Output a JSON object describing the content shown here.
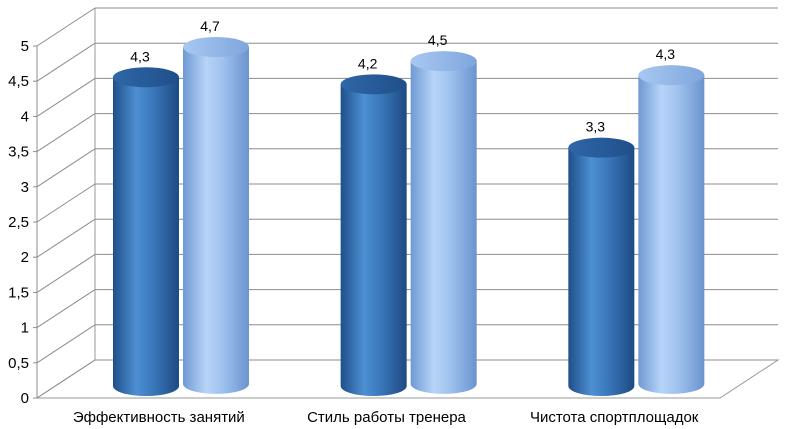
{
  "chart_data": {
    "type": "bar",
    "style": "3d-cylinder",
    "categories": [
      "Эффективность занятий",
      "Стиль работы тренера",
      "Чистота спортплощадок"
    ],
    "series": [
      {
        "values": [
          4.3,
          4.2,
          3.3
        ],
        "value_labels": [
          "4,3",
          "4,2",
          "3,3"
        ],
        "color": "#3c7dc0"
      },
      {
        "values": [
          4.7,
          4.5,
          4.3
        ],
        "value_labels": [
          "4,7",
          "4,5",
          "4,3"
        ],
        "color": "#9dc3f2"
      }
    ],
    "ylim": [
      0,
      5
    ],
    "yticks": [
      "0",
      "0,5",
      "1",
      "1,5",
      "2",
      "2,5",
      "3",
      "3,5",
      "4",
      "4,5",
      "5"
    ],
    "grid": true,
    "legend": "none",
    "xlabel": "",
    "ylabel": ""
  }
}
